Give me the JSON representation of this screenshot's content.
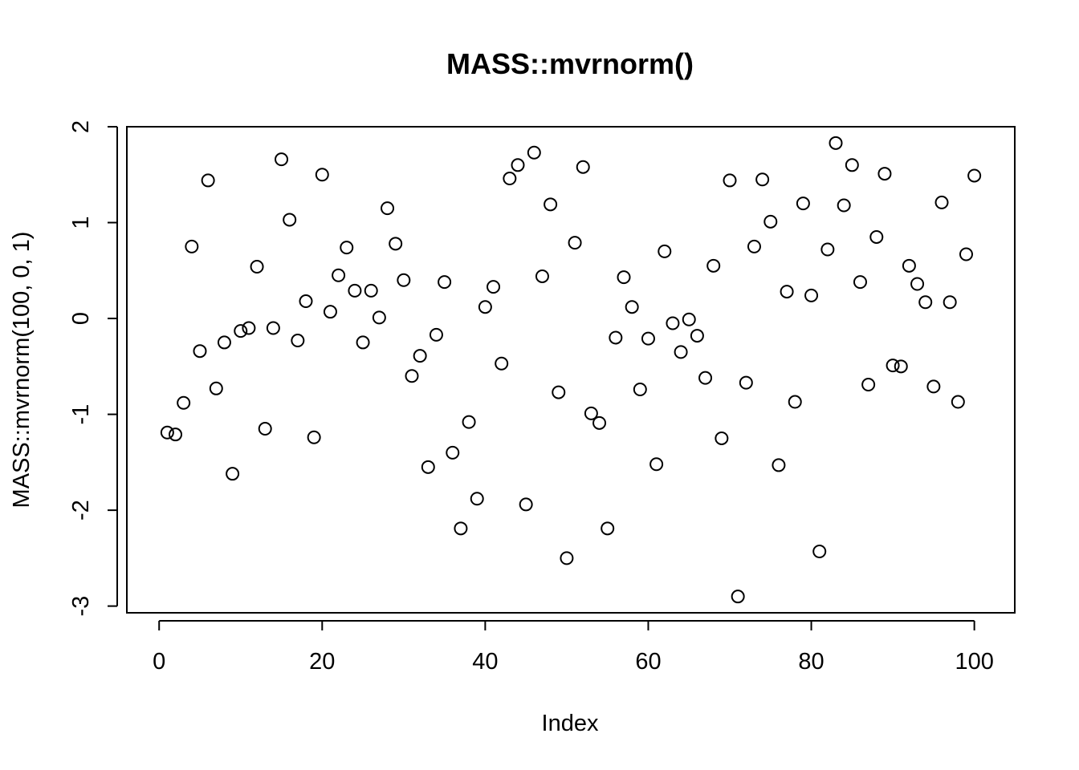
{
  "chart_data": {
    "type": "scatter",
    "title": "MASS::mvrnorm()",
    "xlabel": "Index",
    "ylabel": "MASS::mvrnorm(100, 0, 1)",
    "xlim": [
      -3.96,
      104.96
    ],
    "ylim": [
      -3.07,
      2.0
    ],
    "x_ticks": [
      0,
      20,
      40,
      60,
      80,
      100
    ],
    "x_tick_labels": [
      "0",
      "20",
      "40",
      "60",
      "80",
      "100"
    ],
    "y_ticks": [
      -3,
      -2,
      -1,
      0,
      1,
      2
    ],
    "y_tick_labels": [
      "-3",
      "-2",
      "-1",
      "0",
      "1",
      "2"
    ],
    "grid": false,
    "marker": "open-circle",
    "x": [
      1,
      2,
      3,
      4,
      5,
      6,
      7,
      8,
      9,
      10,
      11,
      12,
      13,
      14,
      15,
      16,
      17,
      18,
      19,
      20,
      21,
      22,
      23,
      24,
      25,
      26,
      27,
      28,
      29,
      30,
      31,
      32,
      33,
      34,
      35,
      36,
      37,
      38,
      39,
      40,
      41,
      42,
      43,
      44,
      45,
      46,
      47,
      48,
      49,
      50,
      51,
      52,
      53,
      54,
      55,
      56,
      57,
      58,
      59,
      60,
      61,
      62,
      63,
      64,
      65,
      66,
      67,
      68,
      69,
      70,
      71,
      72,
      73,
      74,
      75,
      76,
      77,
      78,
      79,
      80,
      81,
      82,
      83,
      84,
      85,
      86,
      87,
      88,
      89,
      90,
      91,
      92,
      93,
      94,
      95,
      96,
      97,
      98,
      99,
      100
    ],
    "y": [
      -1.19,
      -1.21,
      -0.88,
      0.75,
      -0.34,
      1.44,
      -0.73,
      -0.25,
      -1.62,
      -0.13,
      -0.1,
      0.54,
      -1.15,
      -0.1,
      1.66,
      1.03,
      -0.23,
      0.18,
      -1.24,
      1.5,
      0.07,
      0.45,
      0.74,
      0.29,
      -0.25,
      0.29,
      0.01,
      1.15,
      0.78,
      0.4,
      -0.6,
      -0.39,
      -1.55,
      -0.17,
      0.38,
      -1.4,
      -2.19,
      -1.08,
      -1.88,
      0.12,
      0.33,
      -0.47,
      1.46,
      1.6,
      -1.94,
      1.73,
      0.44,
      1.19,
      -0.77,
      -2.5,
      0.79,
      1.58,
      -0.99,
      -1.09,
      -2.19,
      -0.2,
      0.43,
      0.12,
      -0.74,
      -0.21,
      -1.52,
      0.7,
      -0.05,
      -0.35,
      -0.01,
      -0.18,
      -0.62,
      0.55,
      -1.25,
      1.44,
      -2.9,
      -0.67,
      0.75,
      1.45,
      1.01,
      -1.53,
      0.28,
      -0.87,
      1.2,
      0.24,
      -2.43,
      0.72,
      1.83,
      1.18,
      1.6,
      0.38,
      -0.69,
      0.85,
      1.51,
      -0.49,
      -0.5,
      0.55,
      0.36,
      0.17,
      -0.71,
      1.21,
      0.17,
      -0.87,
      0.67,
      1.49
    ]
  }
}
